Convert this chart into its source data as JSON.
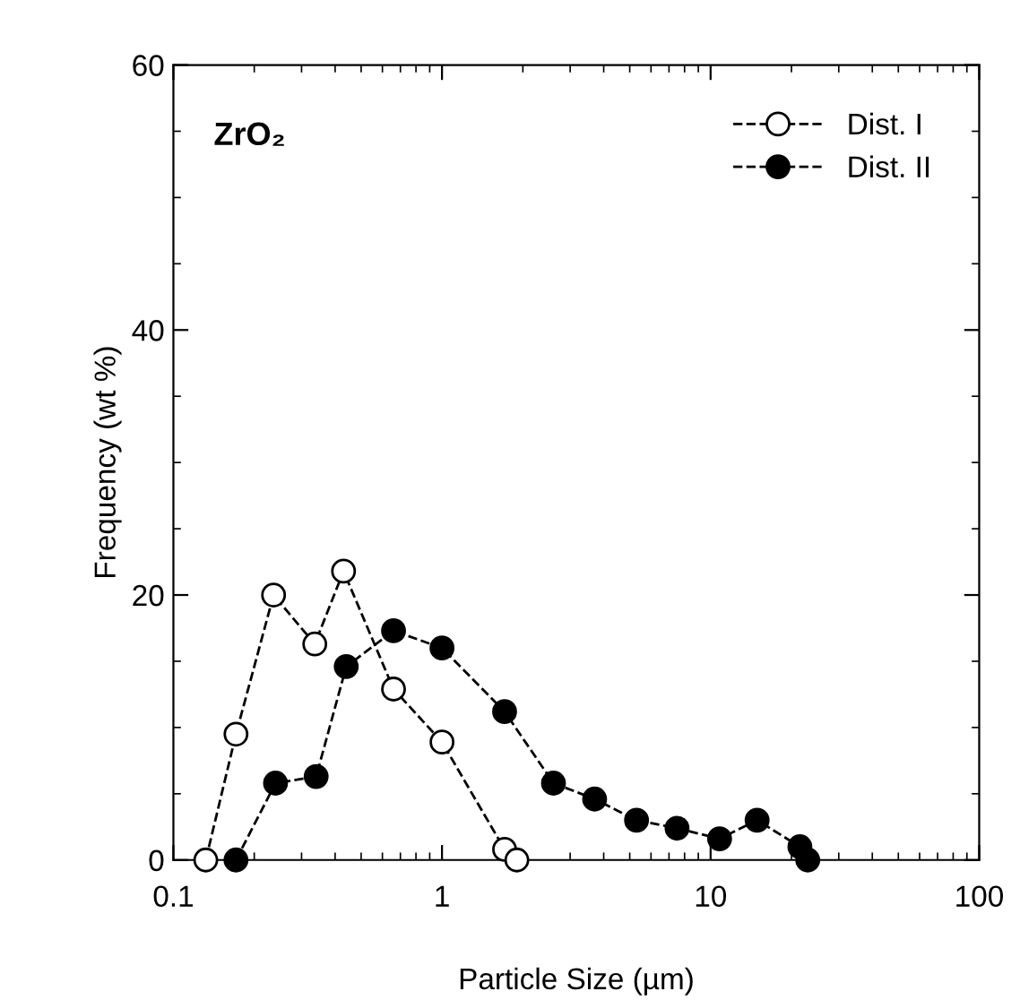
{
  "chart_data": {
    "type": "line",
    "xlabel": "Particle Size (µm)",
    "ylabel": "Frequency (wt %)",
    "log": "x",
    "xlim": [
      0.1,
      100
    ],
    "xticks": [
      0.1,
      1,
      10,
      100
    ],
    "ylim": [
      0,
      60
    ],
    "yticks": [
      0,
      20,
      40,
      60
    ],
    "annotations": [
      "ZrO₂"
    ],
    "legend": "top right",
    "line_style": "dashed",
    "grid": false,
    "series": [
      {
        "name": "Dist. I",
        "color": "#ffffff",
        "marker": "circle",
        "x": [
          0.132,
          0.171,
          0.236,
          0.336,
          0.43,
          0.66,
          1.0,
          1.71,
          1.9
        ],
        "values": [
          0,
          9.5,
          20,
          16.3,
          21.8,
          12.9,
          8.9,
          0.8,
          0
        ]
      },
      {
        "name": "Dist. II",
        "color": "#000000",
        "marker": "circle",
        "x": [
          0.171,
          0.24,
          0.34,
          0.44,
          0.66,
          1.0,
          1.71,
          2.6,
          3.7,
          5.3,
          7.5,
          10.8,
          14.9,
          21.5,
          23
        ],
        "values": [
          0,
          5.8,
          6.3,
          14.6,
          17.3,
          16,
          11.2,
          5.8,
          4.6,
          3.0,
          2.4,
          1.6,
          3,
          1,
          0
        ]
      }
    ]
  }
}
